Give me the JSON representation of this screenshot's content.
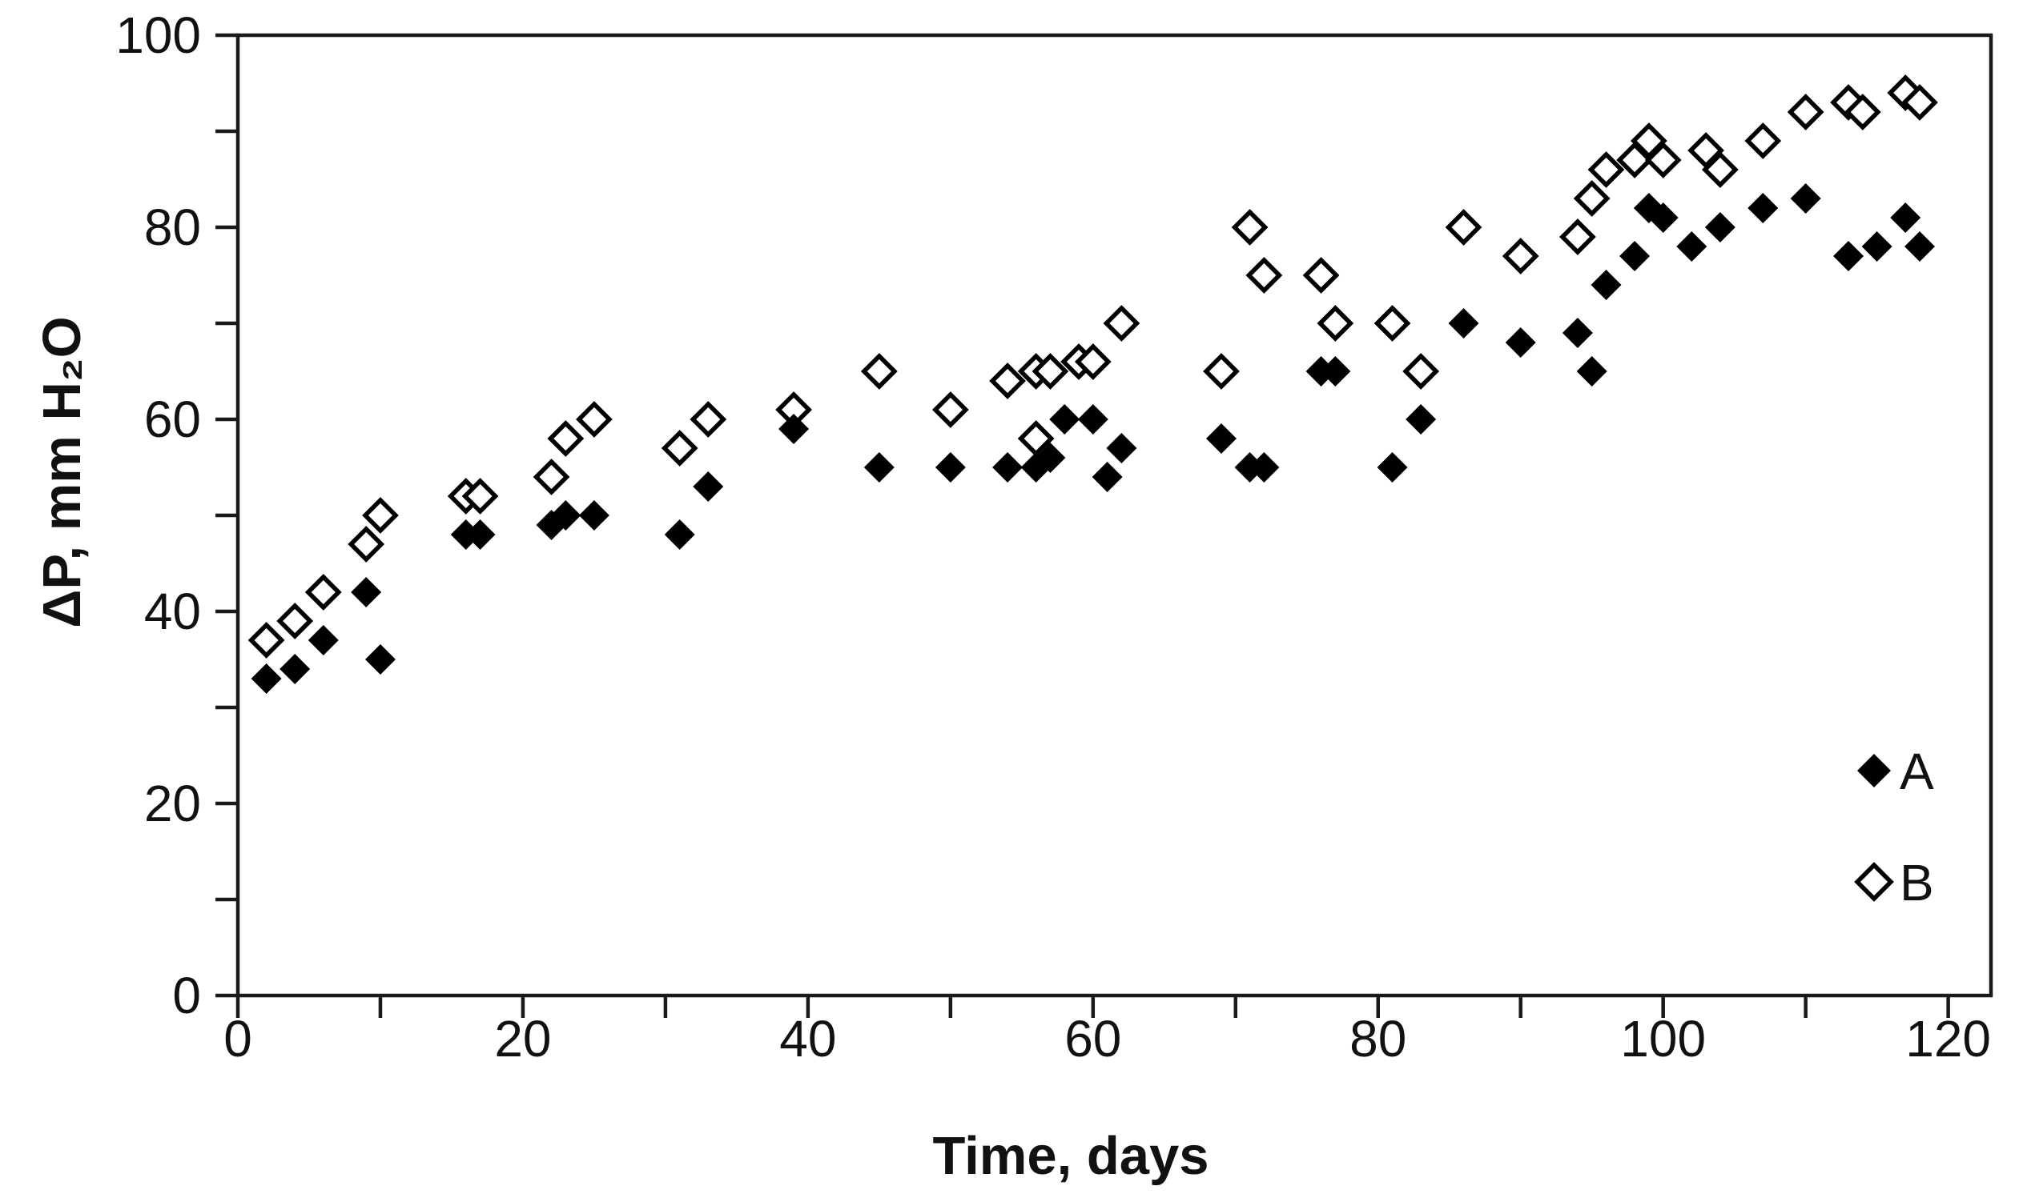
{
  "figure": {
    "background": "#ffffff",
    "axis_color": "#1a1a1a",
    "marker_color": "#000000",
    "open_marker_fill": "#ffffff"
  },
  "chart_data": {
    "type": "scatter",
    "title": "",
    "xlabel": "Time, days",
    "ylabel": "ΔP, mm H₂O",
    "xlim": [
      0,
      123
    ],
    "ylim": [
      0,
      100
    ],
    "grid": false,
    "x_axis": {
      "major_ticks": [
        0,
        20,
        40,
        60,
        80,
        100,
        120
      ],
      "minor_ticks": [
        10,
        30,
        50,
        70,
        90,
        110
      ]
    },
    "y_axis": {
      "major_ticks": [
        0,
        20,
        40,
        60,
        80,
        100
      ],
      "minor_ticks": [
        10,
        30,
        50,
        70,
        90
      ]
    },
    "legend": {
      "position": "bottom-right",
      "entries": [
        "A",
        "B"
      ]
    },
    "series": [
      {
        "name": "A",
        "marker": "filled-diamond",
        "color": "#000000",
        "points": [
          [
            2,
            33
          ],
          [
            4,
            34
          ],
          [
            6,
            37
          ],
          [
            9,
            42
          ],
          [
            10,
            35
          ],
          [
            16,
            48
          ],
          [
            17,
            48
          ],
          [
            22,
            49
          ],
          [
            23,
            50
          ],
          [
            25,
            50
          ],
          [
            31,
            48
          ],
          [
            33,
            53
          ],
          [
            39,
            59
          ],
          [
            45,
            55
          ],
          [
            50,
            55
          ],
          [
            54,
            55
          ],
          [
            56,
            55
          ],
          [
            57,
            56
          ],
          [
            58,
            60
          ],
          [
            60,
            60
          ],
          [
            61,
            54
          ],
          [
            62,
            57
          ],
          [
            69,
            58
          ],
          [
            71,
            55
          ],
          [
            72,
            55
          ],
          [
            76,
            65
          ],
          [
            77,
            65
          ],
          [
            81,
            55
          ],
          [
            83,
            60
          ],
          [
            86,
            70
          ],
          [
            90,
            68
          ],
          [
            94,
            69
          ],
          [
            95,
            65
          ],
          [
            96,
            74
          ],
          [
            98,
            77
          ],
          [
            99,
            82
          ],
          [
            100,
            81
          ],
          [
            102,
            78
          ],
          [
            104,
            80
          ],
          [
            107,
            82
          ],
          [
            110,
            83
          ],
          [
            113,
            77
          ],
          [
            115,
            78
          ],
          [
            117,
            81
          ],
          [
            118,
            78
          ]
        ]
      },
      {
        "name": "B",
        "marker": "open-diamond",
        "color": "#000000",
        "points": [
          [
            2,
            37
          ],
          [
            4,
            39
          ],
          [
            6,
            42
          ],
          [
            9,
            47
          ],
          [
            10,
            50
          ],
          [
            16,
            52
          ],
          [
            17,
            52
          ],
          [
            22,
            54
          ],
          [
            23,
            58
          ],
          [
            25,
            60
          ],
          [
            31,
            57
          ],
          [
            33,
            60
          ],
          [
            39,
            61
          ],
          [
            45,
            65
          ],
          [
            50,
            61
          ],
          [
            54,
            64
          ],
          [
            56,
            58
          ],
          [
            56,
            65
          ],
          [
            57,
            65
          ],
          [
            59,
            66
          ],
          [
            60,
            66
          ],
          [
            62,
            70
          ],
          [
            69,
            65
          ],
          [
            71,
            80
          ],
          [
            72,
            75
          ],
          [
            76,
            75
          ],
          [
            77,
            70
          ],
          [
            81,
            70
          ],
          [
            83,
            65
          ],
          [
            86,
            80
          ],
          [
            90,
            77
          ],
          [
            94,
            79
          ],
          [
            95,
            83
          ],
          [
            96,
            86
          ],
          [
            98,
            87
          ],
          [
            99,
            89
          ],
          [
            100,
            87
          ],
          [
            103,
            88
          ],
          [
            104,
            86
          ],
          [
            107,
            89
          ],
          [
            110,
            92
          ],
          [
            113,
            93
          ],
          [
            114,
            92
          ],
          [
            117,
            94
          ],
          [
            118,
            93
          ]
        ]
      }
    ]
  }
}
